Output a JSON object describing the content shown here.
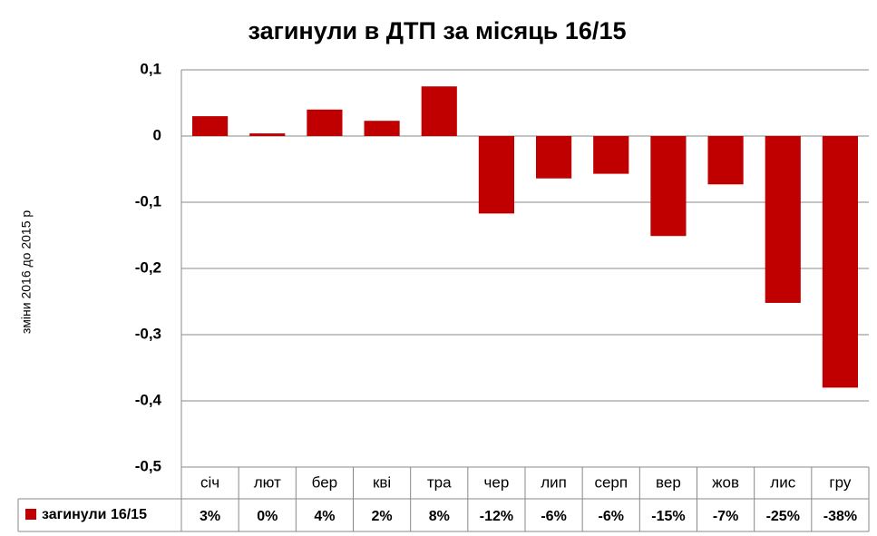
{
  "chart_data": {
    "type": "bar",
    "title": "загинули в ДТП за місяць 16/15",
    "y_label": "зміни 2016 до 2015 р",
    "categories": [
      "січ",
      "лют",
      "бер",
      "кві",
      "тра",
      "чер",
      "лип",
      "серп",
      "вер",
      "жов",
      "лис",
      "гру"
    ],
    "series": [
      {
        "name": "загинули 16/15",
        "color": "#c00000",
        "values": [
          0.03,
          0.004,
          0.04,
          0.023,
          0.075,
          -0.117,
          -0.064,
          -0.057,
          -0.151,
          -0.073,
          -0.252,
          -0.38
        ],
        "value_labels": [
          "3%",
          "0%",
          "4%",
          "2%",
          "8%",
          "-12%",
          "-6%",
          "-6%",
          "-15%",
          "-7%",
          "-25%",
          "-38%"
        ]
      }
    ],
    "ylim": [
      -0.5,
      0.1
    ],
    "yticks": [
      {
        "value": 0.1,
        "label": "0,1"
      },
      0,
      {
        "value": -0.1,
        "label": "-0,1"
      },
      {
        "value": -0.2,
        "label": "-0,2"
      },
      {
        "value": -0.3,
        "label": "-0,3"
      },
      {
        "value": -0.4,
        "label": "-0,4"
      },
      {
        "value": -0.5,
        "label": "-0,5"
      }
    ],
    "grid": true
  }
}
